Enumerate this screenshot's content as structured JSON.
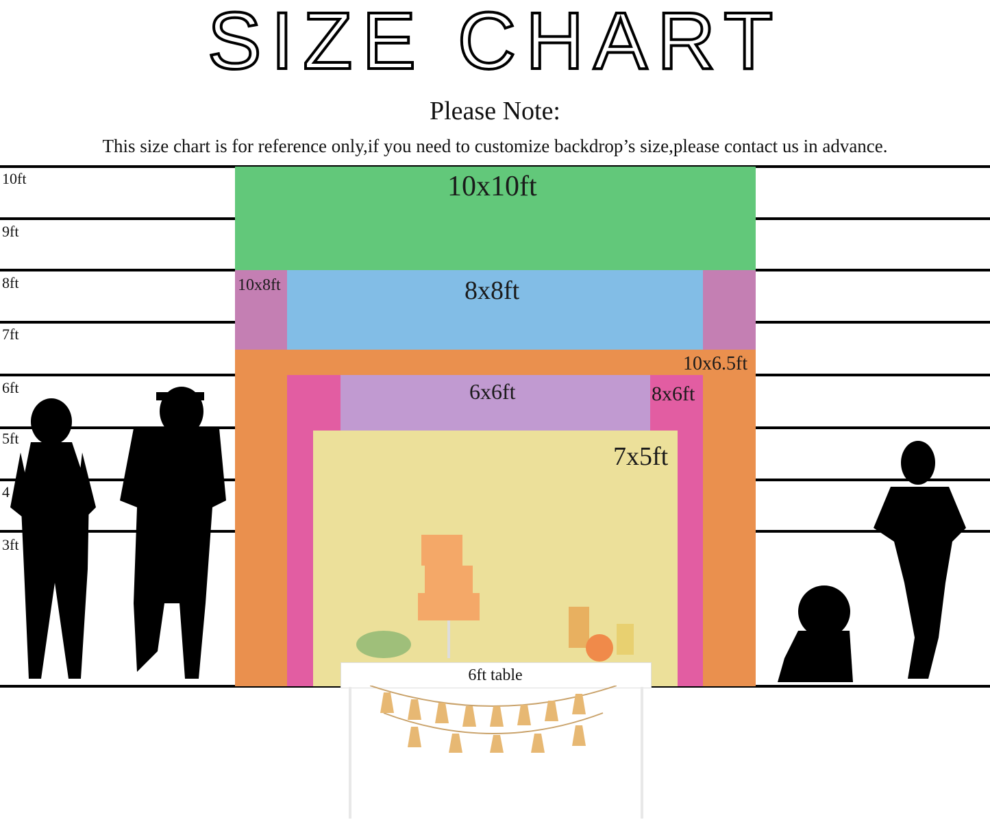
{
  "title": "SIZE CHART",
  "note_heading": "Please Note:",
  "note_text": "This size chart is for reference only,if you need to customize backdrop’s size,please contact us in advance.",
  "height_labels": [
    "10ft",
    "9ft",
    "8ft",
    "7ft",
    "6ft",
    "5ft",
    "4",
    "3ft"
  ],
  "backdrops": [
    {
      "label": "10x10ft",
      "color": "#62c87a"
    },
    {
      "label": "10x8ft",
      "color": "#c47fb3"
    },
    {
      "label": "8x8ft",
      "color": "#82bde6"
    },
    {
      "label": "10x6.5ft",
      "color": "#ea904e"
    },
    {
      "label": "8x6ft",
      "color": "#e25da2"
    },
    {
      "label": "6x6ft",
      "color": "#c19ad1"
    },
    {
      "label": "7x5ft",
      "color": "#ece09a"
    }
  ],
  "table_label": "6ft table"
}
